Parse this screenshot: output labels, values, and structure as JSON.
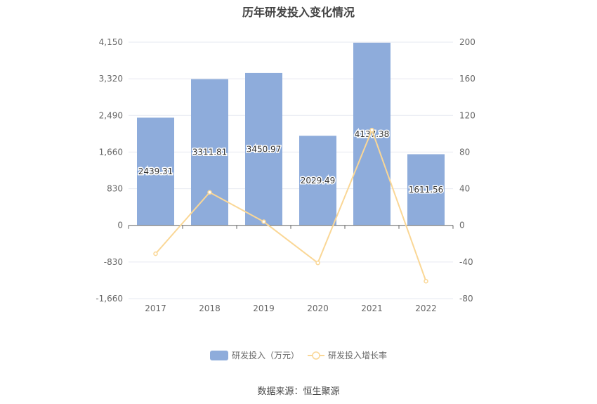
{
  "chart_data": {
    "type": "bar",
    "title": "历年研发投入变化情况",
    "categories": [
      "2017",
      "2018",
      "2019",
      "2020",
      "2021",
      "2022"
    ],
    "series": [
      {
        "name": "研发投入（万元）",
        "type": "bar",
        "axis": "left",
        "values": [
          2439.31,
          3311.81,
          3450.97,
          2029.49,
          4137.38,
          1611.56
        ],
        "labels": [
          "2439.31",
          "3311.81",
          "3450.97",
          "2029.49",
          "4137.38",
          "1611.56"
        ]
      },
      {
        "name": "研发投入增长率",
        "type": "line",
        "axis": "right",
        "values": [
          -31,
          36,
          4,
          -41,
          104,
          -61
        ]
      }
    ],
    "y_left": {
      "ylim": [
        -1660,
        4150
      ],
      "ticks": [
        4150,
        3320,
        2490,
        1660,
        830,
        0,
        -830,
        -1660
      ],
      "tick_labels": [
        "4,150",
        "3,320",
        "2,490",
        "1,660",
        "830",
        "0",
        "-830",
        "-1,660"
      ]
    },
    "y_right": {
      "ylim": [
        -80,
        200
      ],
      "ticks": [
        200,
        160,
        120,
        80,
        40,
        0,
        -40,
        -80
      ],
      "tick_labels": [
        "200",
        "160",
        "120",
        "80",
        "40",
        "0",
        "-40",
        "-80"
      ]
    },
    "grid": true,
    "legend": "bottom",
    "colors": {
      "bar": "#8eacdb",
      "line": "#fad796",
      "axis": "#666666",
      "grid": "#e6e9f0",
      "text": "#666666"
    }
  },
  "source": "数据来源：恒生聚源"
}
